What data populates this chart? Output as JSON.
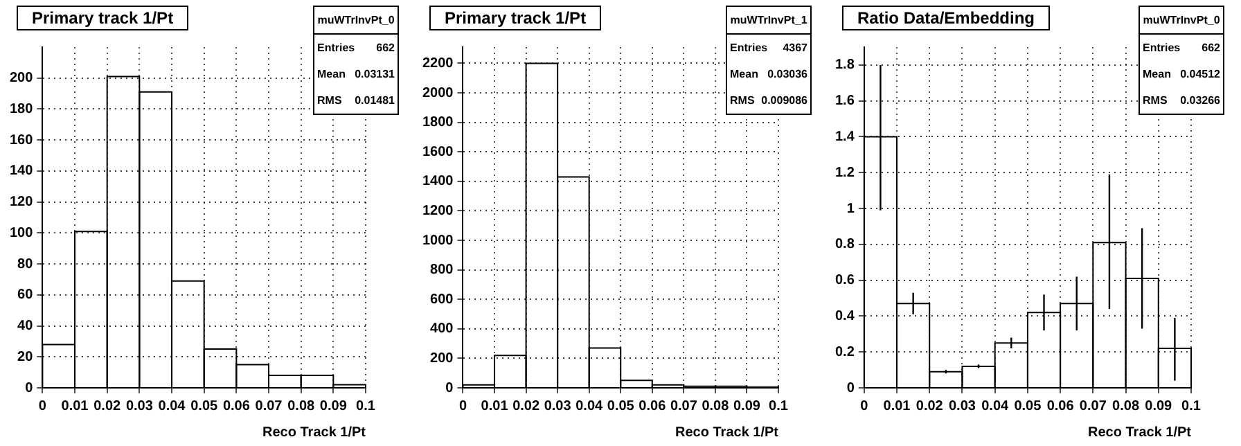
{
  "chart_data": [
    {
      "type": "histogram",
      "title": "Primary track 1/Pt",
      "xlabel": "Reco Track 1/Pt",
      "bins": [
        0,
        0.01,
        0.02,
        0.03,
        0.04,
        0.05,
        0.06,
        0.07,
        0.08,
        0.09,
        0.1
      ],
      "values": [
        28,
        101,
        201,
        191,
        69,
        25,
        15,
        8,
        8,
        2
      ],
      "xlim": [
        0,
        0.1
      ],
      "xticks": [
        0,
        0.01,
        0.02,
        0.03,
        0.04,
        0.05,
        0.06,
        0.07,
        0.08,
        0.09,
        0.1
      ],
      "ylim": [
        0,
        220
      ],
      "yticks": [
        0,
        20,
        40,
        60,
        80,
        100,
        120,
        140,
        160,
        180,
        200
      ],
      "grid": true,
      "annotations": [
        "muWTrInvPt_0",
        "Entries 662",
        "Mean 0.03131",
        "RMS 0.01481"
      ]
    },
    {
      "type": "histogram",
      "title": "Primary track 1/Pt",
      "xlabel": "Reco Track 1/Pt",
      "bins": [
        0,
        0.01,
        0.02,
        0.03,
        0.04,
        0.05,
        0.06,
        0.07,
        0.08,
        0.09,
        0.1
      ],
      "values": [
        20,
        220,
        2200,
        1430,
        270,
        50,
        20,
        10,
        10,
        5
      ],
      "xlim": [
        0,
        0.1
      ],
      "xticks": [
        0,
        0.01,
        0.02,
        0.03,
        0.04,
        0.05,
        0.06,
        0.07,
        0.08,
        0.09,
        0.1
      ],
      "ylim": [
        0,
        2310
      ],
      "yticks": [
        0,
        200,
        400,
        600,
        800,
        1000,
        1200,
        1400,
        1600,
        1800,
        2000,
        2200
      ],
      "grid": true,
      "annotations": [
        "muWTrInvPt_1",
        "Entries 4367",
        "Mean 0.03036",
        "RMS 0.009086"
      ]
    },
    {
      "type": "histogram",
      "title": "Ratio Data/Embedding",
      "xlabel": "Reco Track 1/Pt",
      "bins": [
        0,
        0.01,
        0.02,
        0.03,
        0.04,
        0.05,
        0.06,
        0.07,
        0.08,
        0.09,
        0.1
      ],
      "values": [
        1.4,
        0.47,
        0.09,
        0.12,
        0.25,
        0.42,
        0.47,
        0.81,
        0.61,
        0.22
      ],
      "errors": [
        [
          0.99,
          1.8
        ],
        0.06,
        0.01,
        0.01,
        0.03,
        0.1,
        0.15,
        [
          0.44,
          1.19
        ],
        [
          0.33,
          0.89
        ],
        [
          0.04,
          0.39
        ]
      ],
      "xlim": [
        0,
        0.1
      ],
      "xticks": [
        0,
        0.01,
        0.02,
        0.03,
        0.04,
        0.05,
        0.06,
        0.07,
        0.08,
        0.09,
        0.1
      ],
      "ylim": [
        0,
        1.9
      ],
      "yticks": [
        0,
        0.2,
        0.4,
        0.6,
        0.8,
        1,
        1.2,
        1.4,
        1.6,
        1.8
      ],
      "grid": true,
      "annotations": [
        "muWTrInvPt_0",
        "Entries 662",
        "Mean 0.04512",
        "RMS 0.03266"
      ]
    }
  ]
}
